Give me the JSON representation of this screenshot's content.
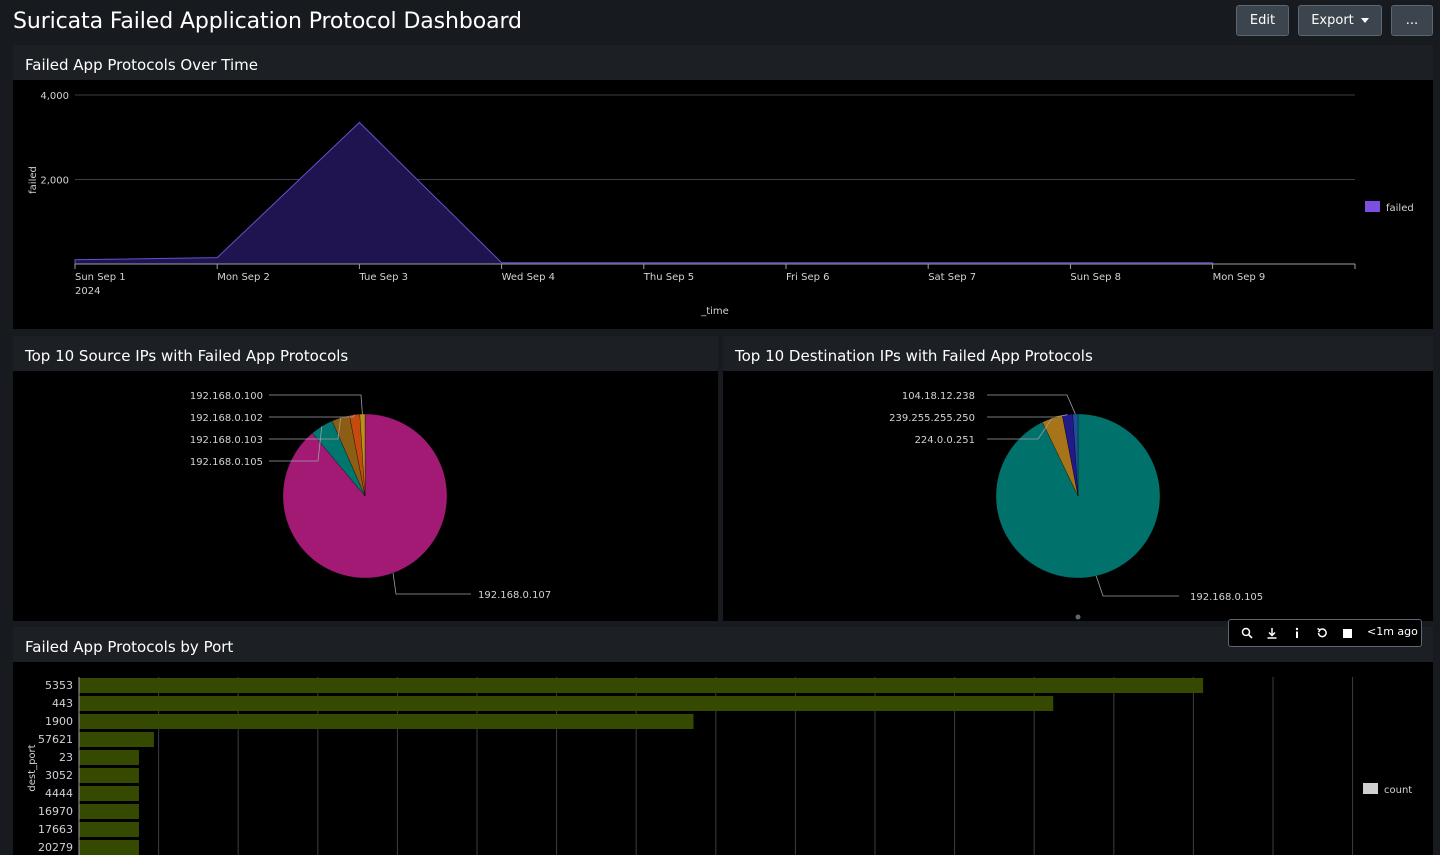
{
  "dashboard": {
    "title": "Suricata Failed Application Protocol Dashboard",
    "buttons": {
      "edit": "Edit",
      "export": "Export",
      "more": "..."
    }
  },
  "panels": {
    "time": {
      "title": "Failed App Protocols Over Time",
      "ylabel": "failed",
      "xlabel": "_time",
      "legend": "failed",
      "color": "#3a1f8a",
      "fill": "#201450"
    },
    "src": {
      "title": "Top 10 Source IPs with Failed App Protocols"
    },
    "dst": {
      "title": "Top 10 Destination IPs with Failed App Protocols"
    },
    "port": {
      "title": "Failed App Protocols by Port",
      "ylabel": "dest_port",
      "legend": "count"
    }
  },
  "toolbar": {
    "icons": [
      "search-icon",
      "download-icon",
      "info-icon",
      "refresh-icon",
      "stop-icon"
    ],
    "ago": "<1m ago"
  },
  "chart_data": [
    {
      "type": "area",
      "title": "Failed App Protocols Over Time",
      "xlabel": "_time",
      "ylabel": "failed",
      "ylim": [
        0,
        4000
      ],
      "yticks": [
        "4,000",
        "2,000"
      ],
      "x": [
        "Sun Sep 1",
        "Mon Sep 2",
        "Tue Sep 3",
        "Wed Sep 4",
        "Thu Sep 5",
        "Fri Sep 6",
        "Sat Sep 7",
        "Sun Sep 8",
        "Mon Sep 9"
      ],
      "x_sub": [
        "2024",
        "",
        "",
        "",
        "",
        "",
        "",
        "",
        ""
      ],
      "series": [
        {
          "name": "failed",
          "values": [
            100,
            150,
            3350,
            30,
            30,
            30,
            30,
            30,
            30
          ]
        }
      ],
      "legend": "right",
      "grid": true
    },
    {
      "type": "pie",
      "title": "Top 10 Source IPs with Failed App Protocols",
      "labels": [
        "192.168.0.107",
        "192.168.0.105",
        "192.168.0.103",
        "192.168.0.102",
        "192.168.0.100"
      ],
      "values": [
        88,
        4.5,
        3.5,
        2,
        1
      ],
      "colors": [
        "#a31a75",
        "#00766e",
        "#8b5e14",
        "#c44a0d",
        "#b89414"
      ]
    },
    {
      "type": "pie",
      "title": "Top 10 Destination IPs with Failed App Protocols",
      "labels": [
        "192.168.0.105",
        "224.0.0.251",
        "239.255.255.250",
        "104.18.12.238"
      ],
      "values": [
        91,
        4,
        2,
        1
      ],
      "colors": [
        "#00726b",
        "#a8741a",
        "#231a8a",
        "#1f4f99"
      ]
    },
    {
      "type": "bar",
      "orientation": "horizontal",
      "title": "Failed App Protocols by Port",
      "ylabel": "dest_port",
      "categories": [
        "5353",
        "443",
        "1900",
        "57621",
        "23",
        "3052",
        "4444",
        "16970",
        "17663",
        "20279"
      ],
      "values": [
        1500,
        1300,
        820,
        100,
        80,
        80,
        80,
        80,
        80,
        80
      ],
      "xlim": [
        0,
        1700
      ],
      "legend": "count",
      "color": "#364900"
    }
  ]
}
